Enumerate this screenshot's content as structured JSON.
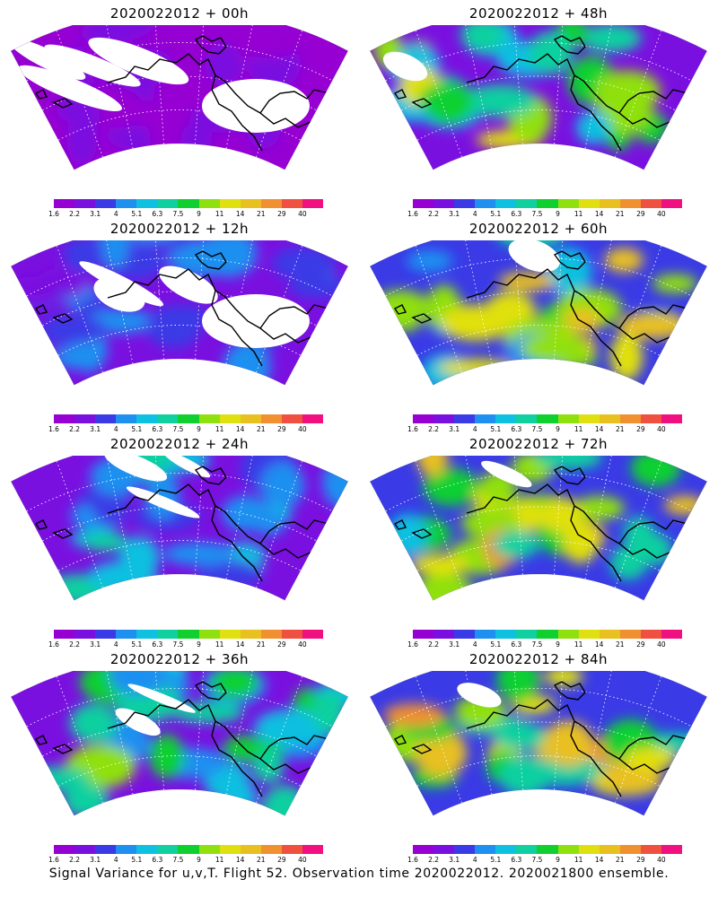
{
  "panels": [
    {
      "title": "2020022012 + 00h",
      "intensity": 0.15
    },
    {
      "title": "2020022012 + 48h",
      "intensity": 0.72
    },
    {
      "title": "2020022012 + 12h",
      "intensity": 0.32
    },
    {
      "title": "2020022012 + 60h",
      "intensity": 0.78
    },
    {
      "title": "2020022012 + 24h",
      "intensity": 0.45
    },
    {
      "title": "2020022012 + 72h",
      "intensity": 0.85
    },
    {
      "title": "2020022012 + 36h",
      "intensity": 0.58
    },
    {
      "title": "2020022012 + 84h",
      "intensity": 0.9
    }
  ],
  "colorbar": {
    "labels": [
      "1.6",
      "2.2",
      "3.1",
      "4",
      "5.1",
      "6.3",
      "7.5",
      "9",
      "11",
      "14",
      "21",
      "29",
      "40"
    ],
    "colors": [
      "#9600d2",
      "#7a10e0",
      "#3a3ae6",
      "#1e90f0",
      "#10c0e0",
      "#10d0a0",
      "#10d030",
      "#90e010",
      "#e0e010",
      "#e8c020",
      "#f09030",
      "#f05040",
      "#f01080"
    ]
  },
  "caption": "Signal Variance for u,v,T. Flight 52. Observation time 2020022012. 2020021800 ensemble."
}
